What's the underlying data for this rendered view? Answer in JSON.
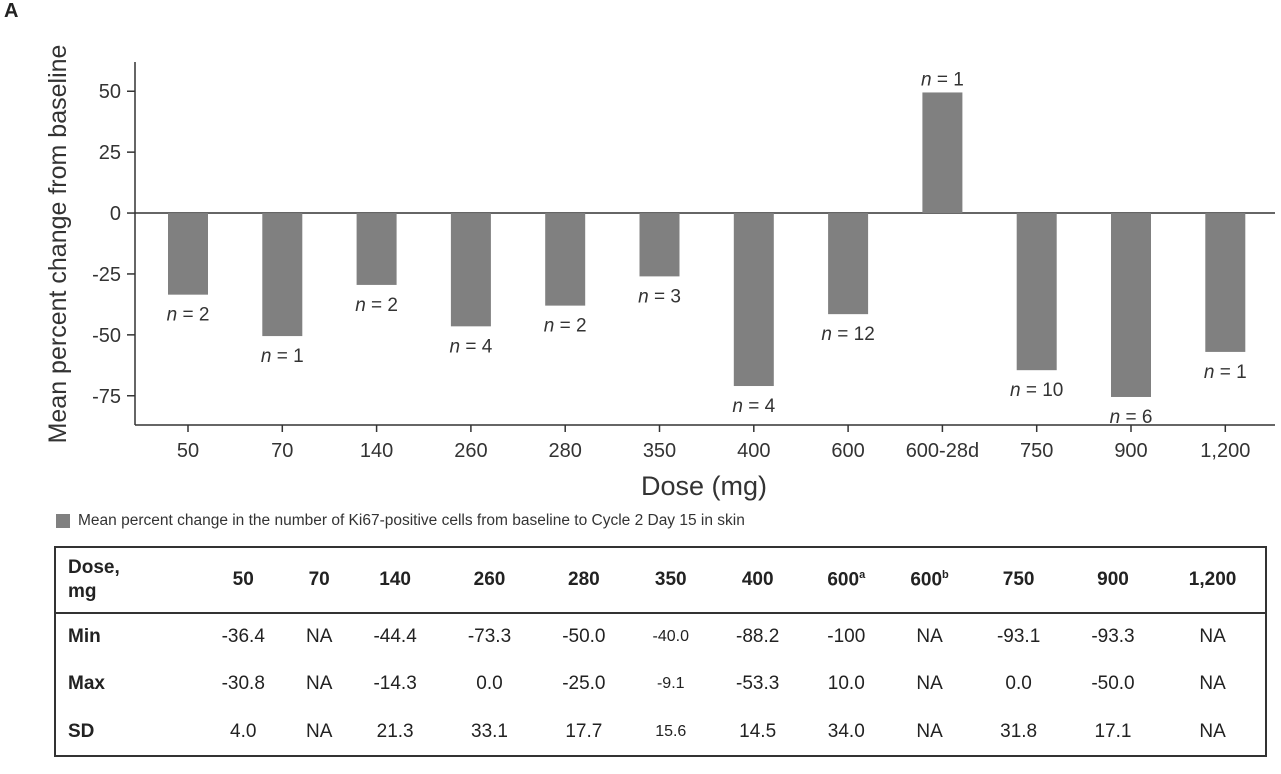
{
  "panel_label": "A",
  "chart_data": {
    "type": "bar",
    "xlabel": "Dose (mg)",
    "ylabel": "Mean percent change from baseline",
    "ylim": [
      -87,
      62
    ],
    "yticks": [
      50,
      25,
      0,
      -25,
      -50,
      -75
    ],
    "categories": [
      "50",
      "70",
      "140",
      "260",
      "280",
      "350",
      "400",
      "600",
      "600-28d",
      "750",
      "900",
      "1,200"
    ],
    "values": [
      -33.5,
      -50.5,
      -29.5,
      -46.5,
      -38,
      -26,
      -71,
      -41.5,
      49.5,
      -64.5,
      -75.5,
      -57
    ],
    "n_labels": [
      "n = 2",
      "n = 1",
      "n = 2",
      "n = 4",
      "n = 2",
      "n = 3",
      "n = 4",
      "n = 12",
      "n = 1",
      "n = 10",
      "n = 6",
      "n = 1"
    ],
    "bar_color": "#808080",
    "grid": false,
    "legend": "Mean percent change in the number of Ki67-positive cells from baseline to Cycle 2 Day 15 in skin",
    "legend_position": "bottom-left"
  },
  "table": {
    "header_label_line1": "Dose,",
    "header_label_line2": "mg",
    "columns": [
      {
        "label": "50",
        "sup": ""
      },
      {
        "label": "70",
        "sup": ""
      },
      {
        "label": "140",
        "sup": ""
      },
      {
        "label": "260",
        "sup": ""
      },
      {
        "label": "280",
        "sup": ""
      },
      {
        "label": "350",
        "sup": ""
      },
      {
        "label": "400",
        "sup": ""
      },
      {
        "label": "600",
        "sup": "a"
      },
      {
        "label": "600",
        "sup": "b"
      },
      {
        "label": "750",
        "sup": ""
      },
      {
        "label": "900",
        "sup": ""
      },
      {
        "label": "1,200",
        "sup": ""
      }
    ],
    "rows": [
      {
        "label": "Min",
        "values": [
          "-36.4",
          "NA",
          "-44.4",
          "-73.3",
          "-50.0",
          "-40.0",
          "-88.2",
          "-100",
          "NA",
          "-93.1",
          "-93.3",
          "NA"
        ]
      },
      {
        "label": "Max",
        "values": [
          "-30.8",
          "NA",
          "-14.3",
          "0.0",
          "-25.0",
          "-9.1",
          "-53.3",
          "10.0",
          "NA",
          "0.0",
          "-50.0",
          "NA"
        ]
      },
      {
        "label": "SD",
        "values": [
          "4.0",
          "NA",
          "21.3",
          "33.1",
          "17.7",
          "15.6",
          "14.5",
          "34.0",
          "NA",
          "31.8",
          "17.1",
          "NA"
        ]
      }
    ]
  }
}
